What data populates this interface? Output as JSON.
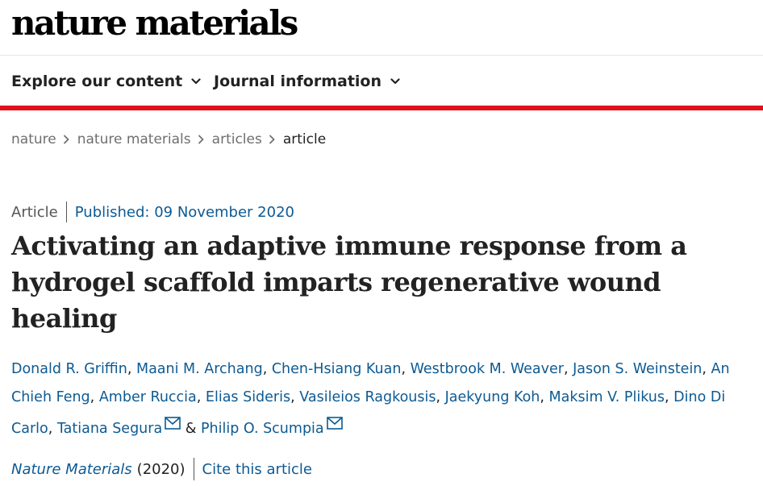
{
  "header": {
    "logo_text": "nature materials"
  },
  "nav": {
    "items": [
      {
        "label": "Explore our content",
        "icon": "chevron-down-icon"
      },
      {
        "label": "Journal information",
        "icon": "chevron-down-icon"
      }
    ],
    "accent_color": "#e0101c"
  },
  "breadcrumb": {
    "items": [
      "nature",
      "nature materials",
      "articles"
    ],
    "current": "article",
    "separator_icon": "chevron-right-icon"
  },
  "article": {
    "type": "Article",
    "published": "Published: 09 November 2020",
    "title": "Activating an adaptive immune response from a hydrogel scaffold imparts regenerative wound healing",
    "authors": [
      "Donald R. Griffin",
      "Maani M. Archang",
      "Chen-Hsiang Kuan",
      "Westbrook M. Weaver",
      "Jason S. Weinstein",
      "An Chieh Feng",
      "Amber Ruccia",
      "Elias Sideris",
      "Vasileios Ragkousis",
      "Jaekyung Koh",
      "Maksim V. Plikus",
      "Dino Di Carlo",
      "Tatiana Segura",
      "Philip O. Scumpia"
    ],
    "author_separator": ", ",
    "last_author_joiner": " & ",
    "corresponding_icon": "mail-icon",
    "journal": "Nature Materials",
    "year": "(2020)",
    "cite_label": "Cite this article",
    "link_color": "#0d5a93"
  }
}
